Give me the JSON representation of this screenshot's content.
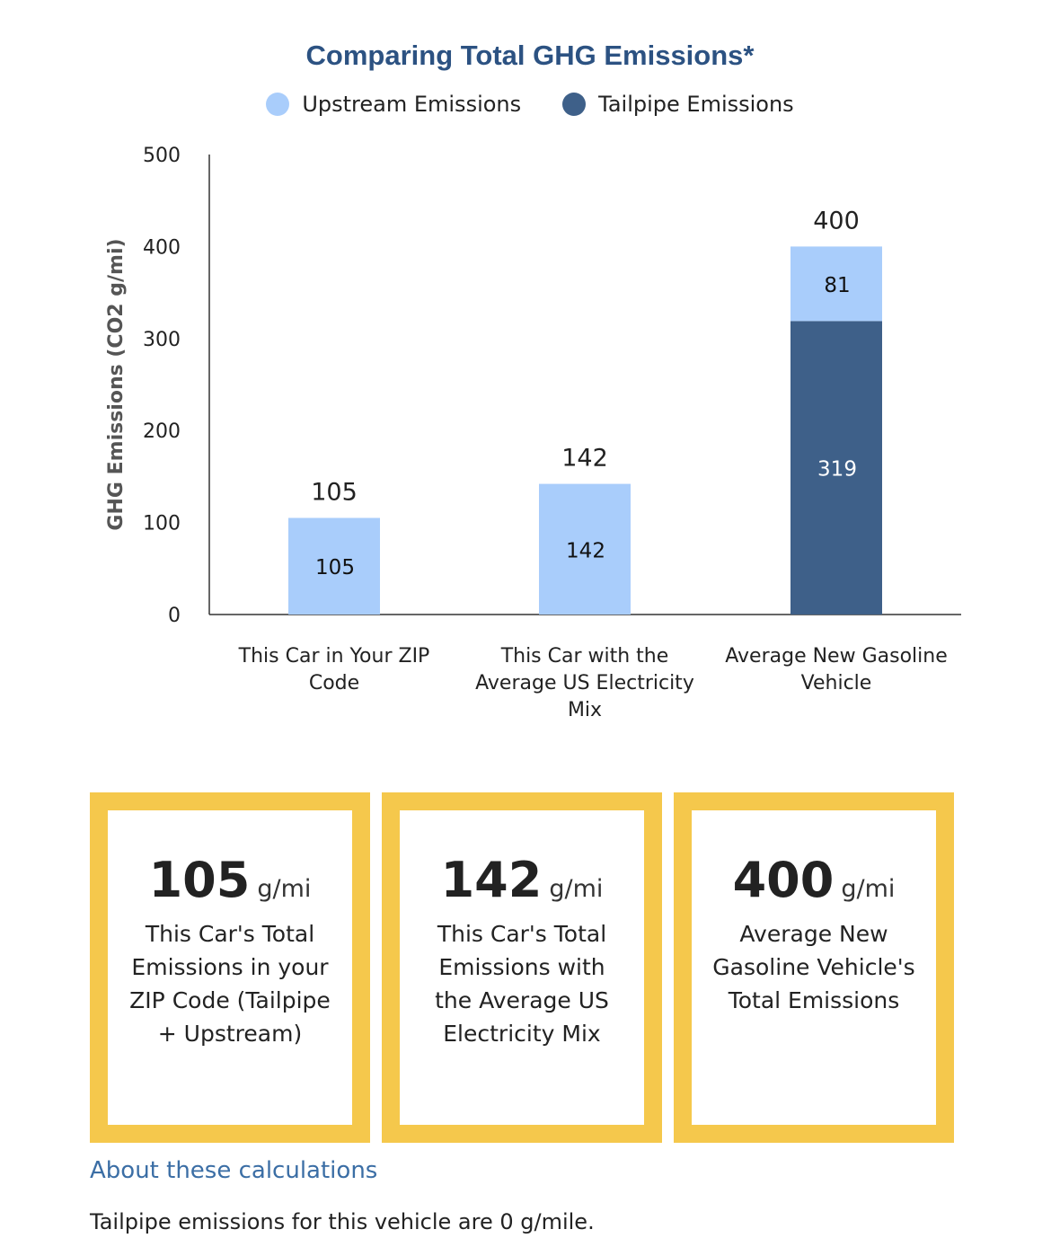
{
  "chart_data": {
    "type": "bar",
    "stacked": true,
    "title": "Comparing Total GHG Emissions*",
    "ylabel": "GHG Emissions (CO2 g/mi)",
    "xlabel": "",
    "ylim": [
      0,
      500
    ],
    "yticks": [
      "0",
      "100",
      "200",
      "300",
      "400",
      "500"
    ],
    "categories": [
      [
        "This Car in Your ZIP",
        "Code"
      ],
      [
        "This Car with the",
        "Average US Electricity",
        "Mix"
      ],
      [
        "Average New Gasoline",
        "Vehicle"
      ]
    ],
    "series": [
      {
        "name": "Tailpipe Emissions",
        "color": "#3e6089",
        "values": [
          0,
          0,
          319
        ]
      },
      {
        "name": "Upstream Emissions",
        "color": "#a9cdfb",
        "values": [
          105,
          142,
          81
        ]
      }
    ],
    "totals": [
      105,
      142,
      400
    ],
    "legend": {
      "position": "top",
      "items": [
        "Upstream Emissions",
        "Tailpipe Emissions"
      ]
    }
  },
  "cards": [
    {
      "value": "105",
      "unit": "g/mi",
      "desc": "This Car's Total Emissions in your ZIP Code (Tailpipe + Upstream)"
    },
    {
      "value": "142",
      "unit": "g/mi",
      "desc": "This Car's Total Emissions with the Average US Electricity Mix"
    },
    {
      "value": "400",
      "unit": "g/mi",
      "desc": "Average New Gasoline Vehicle's Total Emissions"
    }
  ],
  "link": "About these calculations",
  "note": "Tailpipe emissions for this vehicle are 0 g/mile."
}
